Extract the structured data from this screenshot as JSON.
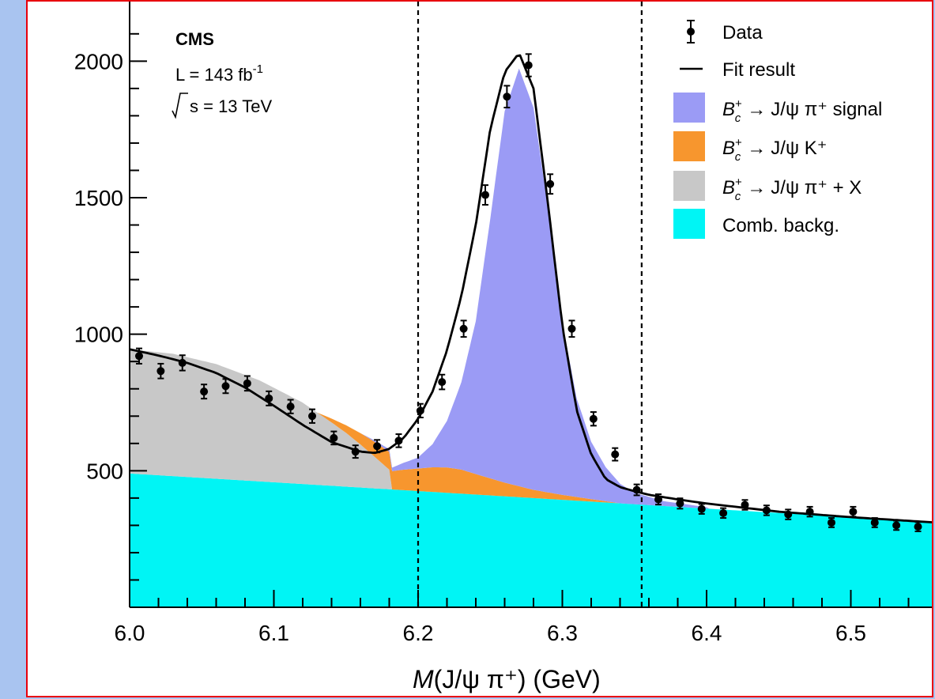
{
  "page": {
    "background_color": "#a9c4f0",
    "frame_border_color": "#e8000b"
  },
  "experiment": {
    "name": "CMS",
    "lumi_prefix": "L = 143 fb",
    "lumi_exponent": "-1",
    "energy": "s = 13 TeV"
  },
  "legend": {
    "data": "Data",
    "fit": "Fit result",
    "signal_rest": "J/ψ π⁺ signal",
    "jpsik_rest": "J/ψ K⁺",
    "pix_rest": "J/ψ π⁺ + X",
    "comb": "Comb. backg.",
    "bc_base": "B",
    "bc_sup": "+",
    "bc_sub": "c",
    "arrow": "→"
  },
  "axis": {
    "x_title_m": "M",
    "x_title_rest": "(J/ψ π⁺) (GeV)"
  },
  "chart_data": {
    "type": "area",
    "title": "",
    "xlabel": "M(J/ψ π⁺) (GeV)",
    "ylabel": "",
    "xlim": [
      6.0,
      6.56
    ],
    "ylim": [
      0,
      2200
    ],
    "x_ticks": [
      6.0,
      6.1,
      6.2,
      6.3,
      6.4,
      6.5
    ],
    "x_tick_labels": [
      "6.0",
      "6.1",
      "6.2",
      "6.3",
      "6.4",
      "6.5"
    ],
    "y_ticks": [
      500,
      1000,
      1500,
      2000
    ],
    "y_tick_labels": [
      "500",
      "1000",
      "1500",
      "2000"
    ],
    "legend_position": "top-right",
    "grid": false,
    "vertical_lines": [
      6.2,
      6.355
    ],
    "series": [
      {
        "name": "Comb. backg.",
        "color": "#00f5f5",
        "x": [
          6.0,
          6.56
        ],
        "y": [
          490,
          310
        ]
      },
      {
        "name": "B_c^+ → J/ψ π^+ + X",
        "color": "#c8c8c8",
        "x": [
          6.0,
          6.03,
          6.06,
          6.09,
          6.12,
          6.14,
          6.15,
          6.16,
          6.17,
          6.18
        ],
        "y": [
          455,
          448,
          420,
          370,
          298,
          232,
          197,
          158,
          115,
          72
        ]
      },
      {
        "name": "B_c^+ → J/ψ K^+",
        "color": "#f7962e",
        "x": [
          6.13,
          6.15,
          6.17,
          6.19,
          6.21,
          6.22,
          6.23,
          6.24,
          6.26,
          6.28,
          6.3,
          6.32,
          6.34
        ],
        "y": [
          0,
          28,
          55,
          75,
          90,
          93,
          88,
          75,
          50,
          30,
          18,
          9,
          0
        ]
      },
      {
        "name": "B_c^+ → J/ψ π^+ signal",
        "color": "#9b9bf5",
        "x": [
          6.16,
          6.18,
          6.2,
          6.21,
          6.22,
          6.23,
          6.24,
          6.25,
          6.26,
          6.27,
          6.28,
          6.29,
          6.3,
          6.31,
          6.32,
          6.33,
          6.34,
          6.35,
          6.37,
          6.4
        ],
        "y": [
          0,
          10,
          40,
          85,
          170,
          320,
          560,
          950,
          1360,
          1530,
          1400,
          1040,
          630,
          360,
          210,
          125,
          72,
          42,
          18,
          5
        ]
      }
    ],
    "fit_result": {
      "name": "Fit result",
      "x": [
        6.0,
        6.02,
        6.04,
        6.06,
        6.08,
        6.1,
        6.12,
        6.14,
        6.16,
        6.17,
        6.18,
        6.19,
        6.2,
        6.21,
        6.22,
        6.23,
        6.24,
        6.25,
        6.26,
        6.27,
        6.28,
        6.29,
        6.3,
        6.31,
        6.32,
        6.33,
        6.34,
        6.35,
        6.36,
        6.38,
        6.4,
        6.45,
        6.5,
        6.56
      ],
      "y": [
        945,
        922,
        895,
        858,
        805,
        738,
        668,
        605,
        570,
        565,
        580,
        620,
        690,
        790,
        940,
        1140,
        1400,
        1750,
        1960,
        2030,
        1900,
        1480,
        1030,
        720,
        560,
        470,
        440,
        425,
        412,
        395,
        380,
        350,
        330,
        310
      ]
    },
    "data_points": {
      "name": "Data",
      "x": [
        6.0,
        6.015,
        6.03,
        6.045,
        6.06,
        6.075,
        6.09,
        6.105,
        6.12,
        6.135,
        6.15,
        6.165,
        6.18,
        6.195,
        6.21,
        6.225,
        6.24,
        6.255,
        6.27,
        6.285,
        6.3,
        6.315,
        6.33,
        6.345,
        6.36,
        6.375,
        6.39,
        6.405,
        6.42,
        6.435,
        6.45,
        6.465,
        6.48,
        6.495,
        6.51,
        6.525,
        6.54
      ],
      "y": [
        920,
        865,
        895,
        790,
        810,
        820,
        765,
        735,
        700,
        620,
        570,
        590,
        610,
        720,
        825,
        1020,
        1510,
        1870,
        1985,
        1550,
        1020,
        690,
        560,
        430,
        395,
        380,
        360,
        345,
        375,
        355,
        340,
        350,
        310,
        350,
        310,
        300,
        295
      ],
      "yerr": [
        28,
        27,
        28,
        26,
        26,
        27,
        26,
        25,
        25,
        24,
        23,
        23,
        24,
        25,
        27,
        30,
        36,
        40,
        41,
        36,
        30,
        25,
        23,
        20,
        19,
        19,
        18,
        18,
        18,
        18,
        18,
        18,
        17,
        18,
        17,
        17,
        17
      ]
    }
  }
}
